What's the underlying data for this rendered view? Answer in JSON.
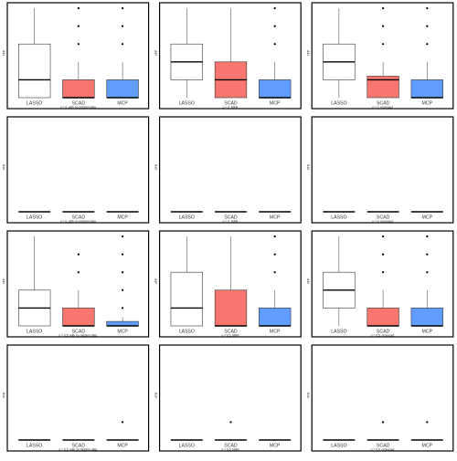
{
  "chart_data": [
    {
      "type": "box",
      "ylabel": "#FP",
      "xlabel": "ρ = 0, with no missing data",
      "ylim": [
        0,
        5
      ],
      "categories": [
        "LASSO",
        "SCAD",
        "MCP"
      ],
      "boxes": [
        {
          "q1": 0,
          "median": 1,
          "q3": 3,
          "lower": 0,
          "upper": 5,
          "outliers": []
        },
        {
          "q1": 0,
          "median": 0,
          "q3": 1,
          "lower": 0,
          "upper": 2,
          "outliers": [
            3,
            4,
            5
          ]
        },
        {
          "q1": 0,
          "median": 0,
          "q3": 1,
          "lower": 0,
          "upper": 2,
          "outliers": [
            3,
            4,
            5
          ]
        }
      ]
    },
    {
      "type": "box",
      "ylabel": "#FP",
      "xlabel": "ρ = 0, MAR",
      "ylim": [
        0,
        5
      ],
      "categories": [
        "LASSO",
        "SCAD",
        "MCP"
      ],
      "boxes": [
        {
          "q1": 1,
          "median": 2,
          "q3": 3,
          "lower": 0,
          "upper": 5,
          "outliers": []
        },
        {
          "q1": 0,
          "median": 1,
          "q3": 2,
          "lower": 0,
          "upper": 5,
          "outliers": []
        },
        {
          "q1": 0,
          "median": 0,
          "q3": 1,
          "lower": 0,
          "upper": 2,
          "outliers": [
            3,
            4,
            5
          ]
        }
      ]
    },
    {
      "type": "box",
      "ylabel": "#FP",
      "xlabel": "ρ = 0, proposed",
      "ylim": [
        0,
        5
      ],
      "categories": [
        "LASSO",
        "SCAD",
        "MCP"
      ],
      "boxes": [
        {
          "q1": 1,
          "median": 2,
          "q3": 3,
          "lower": 0,
          "upper": 5,
          "outliers": []
        },
        {
          "q1": 0,
          "median": 1,
          "q3": 1.2,
          "lower": 0,
          "upper": 2,
          "outliers": [
            3,
            4,
            5
          ]
        },
        {
          "q1": 0,
          "median": 0,
          "q3": 1,
          "lower": 0,
          "upper": 2,
          "outliers": [
            3,
            4,
            5
          ]
        }
      ]
    },
    {
      "type": "box",
      "ylabel": "#FN",
      "xlabel": "ρ = 0, with no missing data",
      "ylim": [
        0,
        5
      ],
      "categories": [
        "LASSO",
        "SCAD",
        "MCP"
      ],
      "boxes": [
        {
          "q1": 0,
          "median": 0,
          "q3": 0,
          "lower": 0,
          "upper": 0,
          "outliers": []
        },
        {
          "q1": 0,
          "median": 0,
          "q3": 0,
          "lower": 0,
          "upper": 0,
          "outliers": []
        },
        {
          "q1": 0,
          "median": 0,
          "q3": 0,
          "lower": 0,
          "upper": 0,
          "outliers": []
        }
      ]
    },
    {
      "type": "box",
      "ylabel": "#FN",
      "xlabel": "ρ = 0, MAR",
      "ylim": [
        0,
        5
      ],
      "categories": [
        "LASSO",
        "SCAD",
        "MCP"
      ],
      "boxes": [
        {
          "q1": 0,
          "median": 0,
          "q3": 0,
          "lower": 0,
          "upper": 0,
          "outliers": []
        },
        {
          "q1": 0,
          "median": 0,
          "q3": 0,
          "lower": 0,
          "upper": 0,
          "outliers": []
        },
        {
          "q1": 0,
          "median": 0,
          "q3": 0,
          "lower": 0,
          "upper": 0,
          "outliers": []
        }
      ]
    },
    {
      "type": "box",
      "ylabel": "#FN",
      "xlabel": "ρ = 0, proposed",
      "ylim": [
        0,
        5
      ],
      "categories": [
        "LASSO",
        "SCAD",
        "MCP"
      ],
      "boxes": [
        {
          "q1": 0,
          "median": 0,
          "q3": 0,
          "lower": 0,
          "upper": 0,
          "outliers": []
        },
        {
          "q1": 0,
          "median": 0,
          "q3": 0,
          "lower": 0,
          "upper": 0,
          "outliers": []
        },
        {
          "q1": 0,
          "median": 0,
          "q3": 0,
          "lower": 0,
          "upper": 0,
          "outliers": []
        }
      ]
    },
    {
      "type": "box",
      "ylabel": "#FP",
      "xlabel": "ρ = 0.5, with no missing data",
      "ylim": [
        0,
        5
      ],
      "categories": [
        "LASSO",
        "SCAD",
        "MCP"
      ],
      "boxes": [
        {
          "q1": 0,
          "median": 1,
          "q3": 2,
          "lower": 0,
          "upper": 5,
          "outliers": []
        },
        {
          "q1": 0,
          "median": 0,
          "q3": 1,
          "lower": 0,
          "upper": 2,
          "outliers": [
            3,
            4
          ]
        },
        {
          "q1": 0,
          "median": 0,
          "q3": 0.25,
          "lower": 0,
          "upper": 0.5,
          "outliers": [
            1,
            2,
            3,
            4,
            5
          ]
        }
      ]
    },
    {
      "type": "box",
      "ylabel": "#FP",
      "xlabel": "ρ = 0.5, MAR",
      "ylim": [
        0,
        5
      ],
      "categories": [
        "LASSO",
        "SCAD",
        "MCP"
      ],
      "boxes": [
        {
          "q1": 0,
          "median": 1,
          "q3": 3,
          "lower": 0,
          "upper": 5,
          "outliers": []
        },
        {
          "q1": 0,
          "median": 0,
          "q3": 2,
          "lower": 0,
          "upper": 5,
          "outliers": []
        },
        {
          "q1": 0,
          "median": 0,
          "q3": 1,
          "lower": 0,
          "upper": 2,
          "outliers": [
            3,
            4,
            5
          ]
        }
      ]
    },
    {
      "type": "box",
      "ylabel": "#FP",
      "xlabel": "ρ = 0.5, proposed",
      "ylim": [
        0,
        5
      ],
      "categories": [
        "LASSO",
        "SCAD",
        "MCP"
      ],
      "boxes": [
        {
          "q1": 1,
          "median": 2,
          "q3": 3,
          "lower": 0,
          "upper": 5,
          "outliers": []
        },
        {
          "q1": 0,
          "median": 0,
          "q3": 1,
          "lower": 0,
          "upper": 2,
          "outliers": [
            3,
            4,
            5
          ]
        },
        {
          "q1": 0,
          "median": 0,
          "q3": 1,
          "lower": 0,
          "upper": 2,
          "outliers": [
            3,
            4,
            5
          ]
        }
      ]
    },
    {
      "type": "box",
      "ylabel": "#FN",
      "xlabel": "ρ = 0.5, with no missing data",
      "ylim": [
        0,
        5
      ],
      "categories": [
        "LASSO",
        "SCAD",
        "MCP"
      ],
      "boxes": [
        {
          "q1": 0,
          "median": 0,
          "q3": 0,
          "lower": 0,
          "upper": 0,
          "outliers": []
        },
        {
          "q1": 0,
          "median": 0,
          "q3": 0,
          "lower": 0,
          "upper": 0,
          "outliers": []
        },
        {
          "q1": 0,
          "median": 0,
          "q3": 0,
          "lower": 0,
          "upper": 0,
          "outliers": [
            1
          ]
        }
      ]
    },
    {
      "type": "box",
      "ylabel": "#FN",
      "xlabel": "ρ = 0.5, MAR",
      "ylim": [
        0,
        5
      ],
      "categories": [
        "LASSO",
        "SCAD",
        "MCP"
      ],
      "boxes": [
        {
          "q1": 0,
          "median": 0,
          "q3": 0,
          "lower": 0,
          "upper": 0,
          "outliers": []
        },
        {
          "q1": 0,
          "median": 0,
          "q3": 0,
          "lower": 0,
          "upper": 0,
          "outliers": [
            1
          ]
        },
        {
          "q1": 0,
          "median": 0,
          "q3": 0,
          "lower": 0,
          "upper": 0,
          "outliers": []
        }
      ]
    },
    {
      "type": "box",
      "ylabel": "#FN",
      "xlabel": "ρ = 0.5, proposed",
      "ylim": [
        0,
        5
      ],
      "categories": [
        "LASSO",
        "SCAD",
        "MCP"
      ],
      "boxes": [
        {
          "q1": 0,
          "median": 0,
          "q3": 0,
          "lower": 0,
          "upper": 0,
          "outliers": []
        },
        {
          "q1": 0,
          "median": 0,
          "q3": 0,
          "lower": 0,
          "upper": 0,
          "outliers": [
            1
          ]
        },
        {
          "q1": 0,
          "median": 0,
          "q3": 0,
          "lower": 0,
          "upper": 0,
          "outliers": [
            1
          ]
        }
      ]
    }
  ],
  "colors": {
    "LASSO": "#ffffff",
    "SCAD": "#f8766d",
    "MCP": "#619cff",
    "frame": "#000000",
    "text": "#333333"
  }
}
